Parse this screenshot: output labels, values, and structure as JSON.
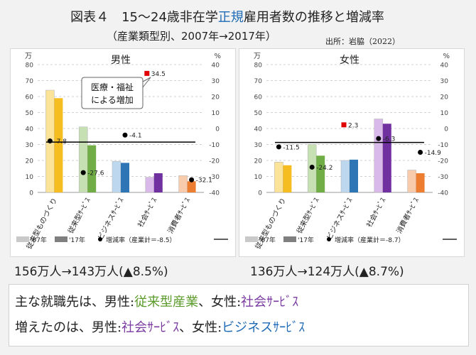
{
  "header": {
    "title_pre": "図表４　15～24歳非在学",
    "title_hl": "正規",
    "title_post": "雇用者数の推移と増減率",
    "subtitle": "（産業類型別、2007年→2017年）",
    "source": "出所：岩脇（2022）"
  },
  "legend": {
    "y07": "'07年",
    "y17": "'17年",
    "rate_male": "増減率（産業計＝-8.5）",
    "rate_female": "増減率（産業計＝-8.7）"
  },
  "units": {
    "left": "万",
    "right": "%"
  },
  "annotation": {
    "line1": "医療・福祉",
    "line2": "による増加"
  },
  "results": {
    "male": "156万人→143万人(▲8.5%)",
    "female": "136万人→124万人(▲8.7%)"
  },
  "summary": {
    "l1_a": "主な就職先は、男性:",
    "l1_b": "従来型",
    "l1_c": "産業",
    "l1_d": "、女性:",
    "l1_e": "社会ｻｰﾋﾞｽ",
    "l2_a": "増えたのは、男性:",
    "l2_b": "社会ｻｰﾋﾞｽ",
    "l2_c": "、女性:",
    "l2_d": "ビジネスｻｰﾋﾞｽ"
  },
  "colors": {
    "c07": [
      "#fbe49a",
      "#c6e0b4",
      "#bdd7ee",
      "#d9b8ea",
      "#f8cbad"
    ],
    "c17": [
      "#f5bd1f",
      "#70ad47",
      "#2e75b6",
      "#7030a0",
      "#ed7d31"
    ]
  },
  "chart_data": [
    {
      "type": "bar",
      "title": "男性",
      "categories": [
        "従来型ものづくり",
        "従来型ｻｰﾋﾞｽ",
        "ビジネスｻｰﾋﾞｽ",
        "社会ｻｰﾋﾞｽ",
        "消費者ｻｰﾋﾞｽ"
      ],
      "series": [
        {
          "name": "'07年",
          "values": [
            64,
            41,
            19.5,
            9.5,
            10.5
          ]
        },
        {
          "name": "'17年",
          "values": [
            59,
            29.5,
            18.5,
            12,
            7
          ]
        },
        {
          "name": "増減率",
          "axis": "right",
          "values": [
            -7.8,
            -27.6,
            -4.1,
            34.5,
            -32.1
          ]
        }
      ],
      "rate_labels": [
        "-7.8",
        "-27.6",
        "-4.1",
        "34.5",
        "-32.1"
      ],
      "industry_total": -8.5,
      "ylim_left": [
        0,
        80
      ],
      "ylim_right": [
        -40,
        40
      ],
      "yticks_left": [
        0,
        10,
        20,
        30,
        40,
        50,
        60,
        70,
        80
      ],
      "yticks_right": [
        -40,
        -30,
        -20,
        -10,
        0,
        10,
        20,
        30,
        40
      ]
    },
    {
      "type": "bar",
      "title": "女性",
      "categories": [
        "従来型ものづくり",
        "従来型ｻｰﾋﾞｽ",
        "ビジネスｻｰﾋﾞｽ",
        "社会ｻｰﾋﾞｽ",
        "消費者ｻｰﾋﾞｽ"
      ],
      "series": [
        {
          "name": "'07年",
          "values": [
            19,
            30,
            20,
            46,
            14
          ]
        },
        {
          "name": "'17年",
          "values": [
            17,
            23,
            20.5,
            43,
            12
          ]
        },
        {
          "name": "増減率",
          "axis": "right",
          "values": [
            -11.5,
            -24.2,
            2.3,
            -6.3,
            -14.9
          ]
        }
      ],
      "rate_labels": [
        "-11.5",
        "-24.2",
        "2.3",
        "-6.3",
        "-14.9"
      ],
      "industry_total": -8.7,
      "ylim_left": [
        0,
        80
      ],
      "ylim_right": [
        -40,
        40
      ],
      "yticks_left": [
        0,
        10,
        20,
        30,
        40,
        50,
        60,
        70,
        80
      ],
      "yticks_right": [
        -40,
        -30,
        -20,
        -10,
        0,
        10,
        20,
        30,
        40
      ]
    }
  ]
}
